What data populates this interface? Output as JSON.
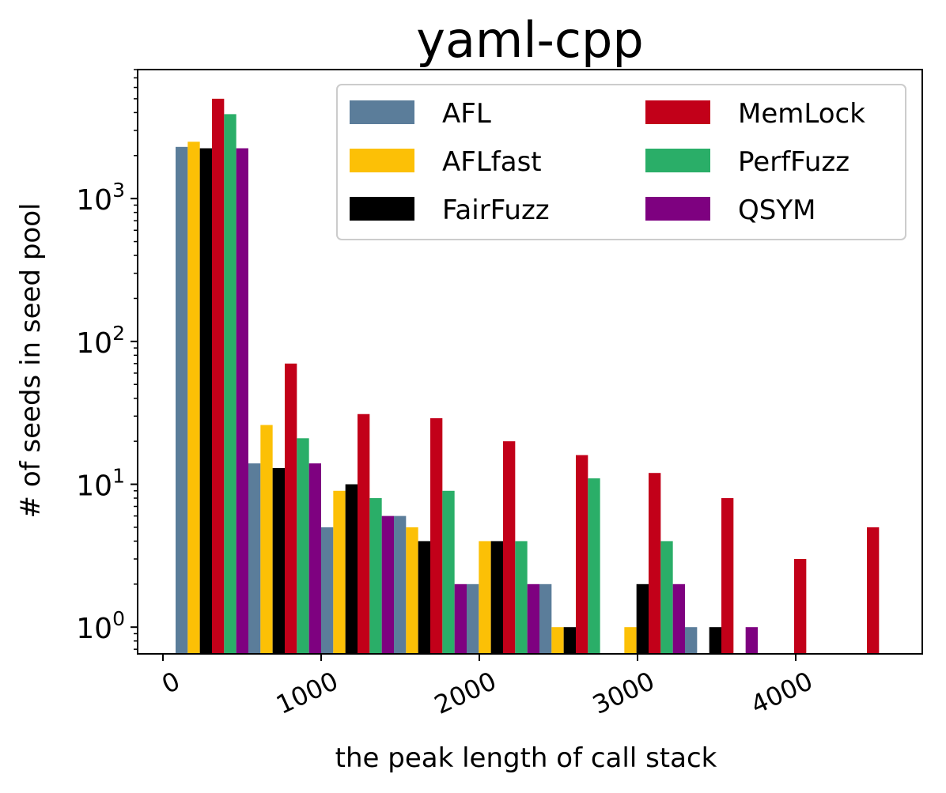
{
  "chart_data": {
    "type": "bar",
    "title": "yaml-cpp",
    "xlabel": "the peak length of call stack",
    "ylabel": "# of seeds in seed pool",
    "yscale": "log",
    "xlim": [
      -160,
      4800
    ],
    "ylim": [
      0.65,
      8000
    ],
    "x_ticks": [
      0,
      1000,
      2000,
      3000,
      4000
    ],
    "x_tick_labels": [
      "0",
      "1000",
      "2000",
      "3000",
      "4000"
    ],
    "y_ticks": [
      1,
      10,
      100,
      1000
    ],
    "y_tick_labels": [
      {
        "base": "10",
        "exp": "0"
      },
      {
        "base": "10",
        "exp": "1"
      },
      {
        "base": "10",
        "exp": "2"
      },
      {
        "base": "10",
        "exp": "3"
      }
    ],
    "bin_edges": [
      80,
      540,
      1000,
      1460,
      1920,
      2380,
      2840,
      3300,
      3760,
      4220,
      4680
    ],
    "legend": {
      "position": "top-right",
      "columns": 2
    },
    "grid": false,
    "series": [
      {
        "name": "AFL",
        "color": "#5b7d9a",
        "values": [
          2300,
          14,
          5,
          6,
          2,
          2,
          0,
          1,
          0,
          0
        ]
      },
      {
        "name": "AFLfast",
        "color": "#fcc006",
        "values": [
          2500,
          26,
          9,
          5,
          4,
          1,
          1,
          0,
          0,
          0
        ]
      },
      {
        "name": "FairFuzz",
        "color": "#000000",
        "values": [
          2250,
          13,
          10,
          4,
          4,
          1,
          2,
          1,
          0,
          0
        ]
      },
      {
        "name": "MemLock",
        "color": "#c20019",
        "values": [
          5000,
          70,
          31,
          29,
          20,
          16,
          12,
          8,
          3,
          5
        ]
      },
      {
        "name": "PerfFuzz",
        "color": "#2aae68",
        "values": [
          3900,
          21,
          8,
          9,
          4,
          11,
          4,
          0,
          0,
          0
        ]
      },
      {
        "name": "QSYM",
        "color": "#7e0180",
        "values": [
          2250,
          14,
          6,
          2,
          2,
          0,
          2,
          1,
          0,
          0
        ]
      }
    ]
  }
}
